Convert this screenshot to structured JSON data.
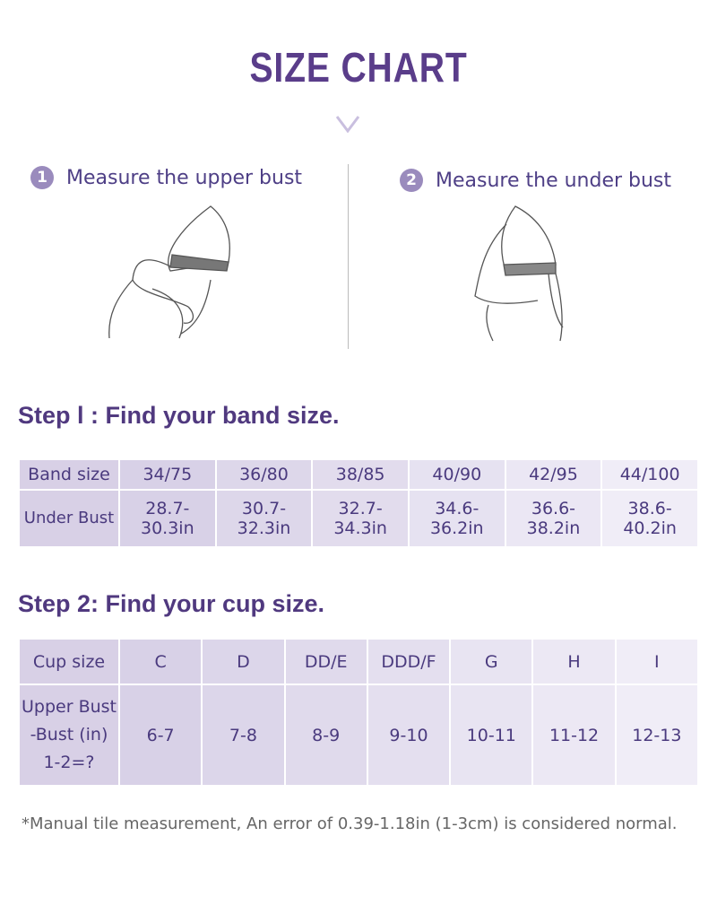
{
  "title": "SIZE CHART",
  "steps": [
    {
      "num": "1",
      "label": "Measure the upper bust"
    },
    {
      "num": "2",
      "label": "Measure the under bust"
    }
  ],
  "step1": {
    "heading": "Step l : Find your band size.",
    "header": "Band size",
    "sizes": [
      "34/75",
      "36/80",
      "38/85",
      "40/90",
      "42/95",
      "44/100"
    ],
    "row_label": "Under Bust",
    "values": [
      "28.7-30.3in",
      "30.7-32.3in",
      "32.7-34.3in",
      "34.6-36.2in",
      "36.6-38.2in",
      "38.6-40.2in"
    ]
  },
  "step2": {
    "heading": "Step 2: Find your cup size.",
    "header": "Cup size",
    "sizes": [
      "C",
      "D",
      "DD/E",
      "DDD/F",
      "G",
      "H",
      "I"
    ],
    "row_label": [
      "Upper Bust",
      "-Bust (in)",
      "1-2=?"
    ],
    "values": [
      "6-7",
      "7-8",
      "8-9",
      "9-10",
      "10-11",
      "11-12",
      "12-13"
    ]
  },
  "note": "*Manual tile measurement, An error of 0.39-1.18in (1-3cm) is considered normal.",
  "colors": {
    "accent": "#5a3d8a",
    "header_cell": "#d8d0e6",
    "cell_light": "#f0edf7"
  }
}
